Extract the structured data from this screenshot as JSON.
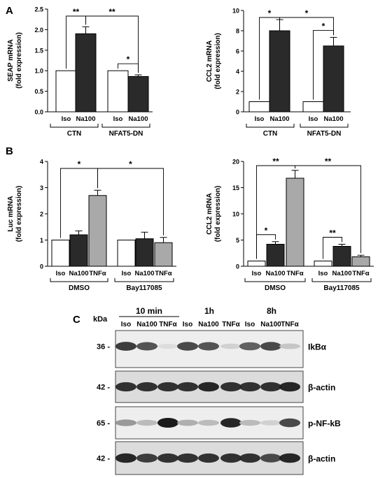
{
  "panel_labels": {
    "A": "A",
    "B": "B",
    "C": "C"
  },
  "chart_data": [
    {
      "id": "A1",
      "type": "bar",
      "ylabel": [
        "SEAP mRNA",
        "(fold expression)"
      ],
      "ylim": [
        0,
        2.5
      ],
      "yticks": [
        "0.0",
        "0.5",
        "1.0",
        "1.5",
        "2.0",
        "2.5"
      ],
      "categories": [
        "Iso",
        "Na100",
        "Iso",
        "Na100"
      ],
      "groups": [
        "CTN",
        "NFAT5-DN"
      ],
      "values": [
        1.0,
        1.9,
        1.0,
        0.86
      ],
      "errors": [
        0,
        0.17,
        0,
        0.04
      ],
      "fills": [
        "#ffffff",
        "#2a2a2a",
        "#ffffff",
        "#2a2a2a"
      ],
      "annotations": [
        {
          "from": 0,
          "to": 1,
          "text": "**"
        },
        {
          "from": 1,
          "to": 3,
          "text": "**"
        },
        {
          "from": 2,
          "to": 3,
          "text": "*"
        }
      ]
    },
    {
      "id": "A2",
      "type": "bar",
      "ylabel": [
        "CCL2 mRNA",
        "(fold expression)"
      ],
      "ylim": [
        0,
        10
      ],
      "yticks": [
        "0",
        "2",
        "4",
        "6",
        "8",
        "10"
      ],
      "categories": [
        "Iso",
        "Na100",
        "Iso",
        "Na100"
      ],
      "groups": [
        "CTN",
        "NFAT5-DN"
      ],
      "values": [
        1.0,
        8.0,
        1.0,
        6.5
      ],
      "errors": [
        0,
        1.1,
        0,
        0.85
      ],
      "fills": [
        "#ffffff",
        "#2a2a2a",
        "#ffffff",
        "#2a2a2a"
      ],
      "annotations": [
        {
          "from": 0,
          "to": 1,
          "text": "*"
        },
        {
          "from": 1,
          "to": 3,
          "text": "*"
        },
        {
          "from": 2,
          "to": 3,
          "text": "*"
        }
      ]
    },
    {
      "id": "B1",
      "type": "bar",
      "ylabel": [
        "Luc mRNA",
        "(fold expression)"
      ],
      "ylim": [
        0,
        4
      ],
      "yticks": [
        "0",
        "1",
        "2",
        "3",
        "4"
      ],
      "categories": [
        "Iso",
        "Na100",
        "TNFα",
        "Iso",
        "Na100",
        "TNFα"
      ],
      "groups": [
        "DMSO",
        "Bay117085"
      ],
      "values": [
        1.0,
        1.2,
        2.7,
        1.0,
        1.05,
        0.9
      ],
      "errors": [
        0,
        0.15,
        0.2,
        0,
        0.25,
        0.2
      ],
      "fills": [
        "#ffffff",
        "#2a2a2a",
        "#a9a9a9",
        "#ffffff",
        "#2a2a2a",
        "#a9a9a9"
      ],
      "annotations": [
        {
          "from": 0,
          "to": 2,
          "text": "*"
        },
        {
          "from": 2,
          "to": 5,
          "text": "*"
        }
      ]
    },
    {
      "id": "B2",
      "type": "bar",
      "ylabel": [
        "CCL2 mRNA",
        "(fold expression)"
      ],
      "ylim": [
        0,
        20
      ],
      "yticks": [
        "0",
        "5",
        "10",
        "15",
        "20"
      ],
      "categories": [
        "Iso",
        "Na100",
        "TNFα",
        "Iso",
        "Na100",
        "TNFα"
      ],
      "groups": [
        "DMSO",
        "Bay117085"
      ],
      "values": [
        1.0,
        4.2,
        16.8,
        1.0,
        3.8,
        1.8
      ],
      "errors": [
        0,
        0.5,
        1.5,
        0,
        0.4,
        0.3
      ],
      "fills": [
        "#ffffff",
        "#2a2a2a",
        "#a9a9a9",
        "#ffffff",
        "#2a2a2a",
        "#a9a9a9"
      ],
      "annotations": [
        {
          "from": 0,
          "to": 1,
          "text": "*"
        },
        {
          "from": 0,
          "to": 2,
          "text": "**"
        },
        {
          "from": 2,
          "to": 5,
          "text": "**"
        },
        {
          "from": 3,
          "to": 4,
          "text": "**"
        }
      ]
    }
  ],
  "western_blot": {
    "kda_header": "kDa",
    "timepoints": [
      "10 min",
      "1h",
      "8h"
    ],
    "lanes": [
      "Iso",
      "Na100",
      "TNFα",
      "Iso",
      "Na100",
      "TNFα",
      "Iso",
      "Na100",
      "TNFα"
    ],
    "rows": [
      {
        "kda": "36 -",
        "label": "IkBα",
        "intensity": [
          0.85,
          0.75,
          0.15,
          0.8,
          0.75,
          0.2,
          0.7,
          0.8,
          0.25
        ]
      },
      {
        "kda": "42 -",
        "label": "β-actin",
        "intensity": [
          0.9,
          0.9,
          0.9,
          0.9,
          0.95,
          0.9,
          0.9,
          0.9,
          0.95
        ]
      },
      {
        "kda": "65 -",
        "label": "p-NF-kB",
        "intensity": [
          0.45,
          0.3,
          1.0,
          0.35,
          0.3,
          0.95,
          0.3,
          0.2,
          0.8
        ]
      },
      {
        "kda": "42 -",
        "label": "β-actin",
        "intensity": [
          0.95,
          0.85,
          0.9,
          0.9,
          0.9,
          0.9,
          0.9,
          0.8,
          0.95
        ]
      }
    ]
  }
}
